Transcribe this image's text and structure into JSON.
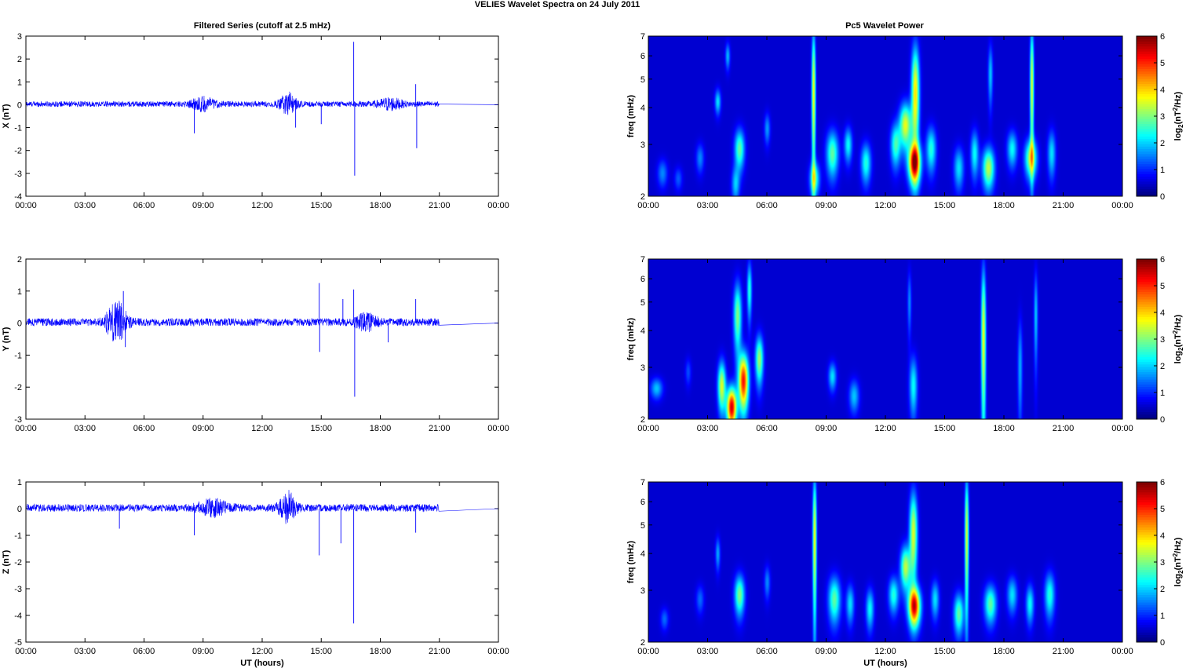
{
  "figure": {
    "title": "VELIES Wavelet Spectra on 24 July      2011",
    "left_title": "Filtered Series (cutoff at 2.5 mHz)",
    "right_title": "Pc5 Wavelet Power",
    "xlabel": "UT (hours)"
  },
  "colors": {
    "trace": "#0000ff",
    "axes": "#000000",
    "jet_background": "#00008f"
  },
  "chart_data": [
    {
      "type": "line",
      "title": "Filtered Series (cutoff at 2.5 mHz)",
      "ylabel": "X (nT)",
      "xlabel": "",
      "xlim": [
        0,
        24
      ],
      "ylim": [
        -4,
        3
      ],
      "xticks": [
        "00:00",
        "03:00",
        "06:00",
        "09:00",
        "12:00",
        "15:00",
        "18:00",
        "21:00",
        "00:00"
      ],
      "yticks": [
        -4,
        -3,
        -2,
        -1,
        0,
        1,
        2,
        3
      ],
      "data_end_hour": 21,
      "baseline_amplitude": 0.12,
      "bursts": [
        {
          "center": 9.0,
          "width": 1.2,
          "amplitude": 0.25
        },
        {
          "center": 13.3,
          "width": 0.8,
          "amplitude": 0.45
        },
        {
          "center": 18.5,
          "width": 1.2,
          "amplitude": 0.22
        }
      ],
      "spikes": [
        {
          "x": 8.55,
          "y": -1.25
        },
        {
          "x": 13.7,
          "y": -1.0
        },
        {
          "x": 15.0,
          "y": -0.85
        },
        {
          "x": 16.65,
          "y": 2.75
        },
        {
          "x": 16.7,
          "y": -3.1
        },
        {
          "x": 19.8,
          "y": 0.9
        },
        {
          "x": 19.85,
          "y": -1.9
        }
      ]
    },
    {
      "type": "line",
      "title": "",
      "ylabel": "Y (nT)",
      "xlabel": "",
      "xlim": [
        0,
        24
      ],
      "ylim": [
        -3,
        2
      ],
      "xticks": [
        "00:00",
        "03:00",
        "06:00",
        "09:00",
        "12:00",
        "15:00",
        "18:00",
        "21:00",
        "00:00"
      ],
      "yticks": [
        -3,
        -2,
        -1,
        0,
        1,
        2
      ],
      "data_end_hour": 21,
      "baseline_amplitude": 0.12,
      "bursts": [
        {
          "center": 4.6,
          "width": 1.0,
          "amplitude": 0.6
        },
        {
          "center": 17.3,
          "width": 1.0,
          "amplitude": 0.22
        }
      ],
      "spikes": [
        {
          "x": 4.95,
          "y": 1.0
        },
        {
          "x": 5.05,
          "y": -0.75
        },
        {
          "x": 14.9,
          "y": 1.25
        },
        {
          "x": 14.92,
          "y": -0.9
        },
        {
          "x": 16.1,
          "y": 0.75
        },
        {
          "x": 16.65,
          "y": 1.05
        },
        {
          "x": 16.7,
          "y": -2.3
        },
        {
          "x": 18.4,
          "y": -0.6
        },
        {
          "x": 19.8,
          "y": 0.75
        }
      ]
    },
    {
      "type": "line",
      "title": "",
      "ylabel": "Z (nT)",
      "xlabel": "UT (hours)",
      "xlim": [
        0,
        24
      ],
      "ylim": [
        -5,
        1
      ],
      "xticks": [
        "00:00",
        "03:00",
        "06:00",
        "09:00",
        "12:00",
        "15:00",
        "18:00",
        "21:00",
        "00:00"
      ],
      "yticks": [
        -5,
        -4,
        -3,
        -2,
        -1,
        0,
        1
      ],
      "data_end_hour": 21,
      "baseline_amplitude": 0.14,
      "bursts": [
        {
          "center": 9.5,
          "width": 1.5,
          "amplitude": 0.25
        },
        {
          "center": 13.3,
          "width": 0.8,
          "amplitude": 0.55
        }
      ],
      "spikes": [
        {
          "x": 4.75,
          "y": -0.75
        },
        {
          "x": 8.55,
          "y": -1.0
        },
        {
          "x": 14.9,
          "y": -1.75
        },
        {
          "x": 16.0,
          "y": -1.3
        },
        {
          "x": 16.65,
          "y": -4.3
        },
        {
          "x": 19.8,
          "y": -0.9
        }
      ]
    },
    {
      "type": "heatmap",
      "title": "Pc5 Wavelet Power",
      "ylabel": "freq (mHz)",
      "xlabel": "",
      "xlim": [
        0,
        24
      ],
      "ylim": [
        2,
        7
      ],
      "yscale": "log",
      "yticks": [
        2,
        3,
        4,
        5,
        6,
        7
      ],
      "xticks": [
        "00:00",
        "03:00",
        "06:00",
        "09:00",
        "12:00",
        "15:00",
        "18:00",
        "21:00",
        "00:00"
      ],
      "colorbar": {
        "label": "log2(nT^2/Hz)",
        "range": [
          0,
          6
        ],
        "ticks": [
          0,
          1,
          2,
          3,
          4,
          5,
          6
        ],
        "colormap": "jet"
      },
      "features": [
        {
          "t": 0.7,
          "f": 2.4,
          "power": 1.2,
          "dt": 0.25,
          "df": 0.25
        },
        {
          "t": 1.5,
          "f": 2.3,
          "power": 0.9,
          "dt": 0.2,
          "df": 0.2
        },
        {
          "t": 2.6,
          "f": 2.7,
          "power": 1.2,
          "dt": 0.2,
          "df": 0.3
        },
        {
          "t": 3.5,
          "f": 4.2,
          "power": 1.8,
          "dt": 0.15,
          "df": 0.4
        },
        {
          "t": 4.0,
          "f": 6.0,
          "power": 1.5,
          "dt": 0.12,
          "df": 0.6
        },
        {
          "t": 4.6,
          "f": 2.9,
          "power": 2.6,
          "dt": 0.25,
          "df": 0.45
        },
        {
          "t": 4.4,
          "f": 2.2,
          "power": 1.6,
          "dt": 0.2,
          "df": 0.3
        },
        {
          "t": 6.0,
          "f": 3.4,
          "power": 1.3,
          "dt": 0.15,
          "df": 0.4
        },
        {
          "t": 8.35,
          "f": 4.5,
          "power": 3.6,
          "dt": 0.1,
          "df": 2.5
        },
        {
          "t": 8.4,
          "f": 2.3,
          "power": 2.4,
          "dt": 0.25,
          "df": 0.3
        },
        {
          "t": 9.3,
          "f": 2.8,
          "power": 2.6,
          "dt": 0.3,
          "df": 0.5
        },
        {
          "t": 10.1,
          "f": 3.0,
          "power": 2.0,
          "dt": 0.2,
          "df": 0.4
        },
        {
          "t": 11.0,
          "f": 2.6,
          "power": 2.2,
          "dt": 0.25,
          "df": 0.4
        },
        {
          "t": 12.5,
          "f": 3.0,
          "power": 2.4,
          "dt": 0.25,
          "df": 0.5
        },
        {
          "t": 13.0,
          "f": 3.5,
          "power": 3.5,
          "dt": 0.3,
          "df": 0.6
        },
        {
          "t": 13.45,
          "f": 2.6,
          "power": 5.4,
          "dt": 0.3,
          "df": 0.4
        },
        {
          "t": 13.5,
          "f": 4.5,
          "power": 3.8,
          "dt": 0.2,
          "df": 1.8
        },
        {
          "t": 14.3,
          "f": 2.9,
          "power": 2.2,
          "dt": 0.25,
          "df": 0.5
        },
        {
          "t": 15.7,
          "f": 2.5,
          "power": 1.8,
          "dt": 0.25,
          "df": 0.4
        },
        {
          "t": 16.5,
          "f": 2.8,
          "power": 2.0,
          "dt": 0.2,
          "df": 0.5
        },
        {
          "t": 17.2,
          "f": 2.5,
          "power": 3.2,
          "dt": 0.3,
          "df": 0.4
        },
        {
          "t": 17.3,
          "f": 5.2,
          "power": 1.6,
          "dt": 0.12,
          "df": 1.2
        },
        {
          "t": 18.4,
          "f": 2.9,
          "power": 2.0,
          "dt": 0.25,
          "df": 0.4
        },
        {
          "t": 19.4,
          "f": 4.8,
          "power": 3.4,
          "dt": 0.1,
          "df": 2.4
        },
        {
          "t": 19.35,
          "f": 2.7,
          "power": 3.2,
          "dt": 0.3,
          "df": 0.4
        },
        {
          "t": 20.4,
          "f": 2.8,
          "power": 1.8,
          "dt": 0.2,
          "df": 0.5
        }
      ]
    },
    {
      "type": "heatmap",
      "title": "",
      "ylabel": "freq (mHz)",
      "xlabel": "",
      "xlim": [
        0,
        24
      ],
      "ylim": [
        2,
        7
      ],
      "yscale": "log",
      "yticks": [
        2,
        3,
        4,
        5,
        6,
        7
      ],
      "xticks": [
        "00:00",
        "03:00",
        "06:00",
        "09:00",
        "12:00",
        "15:00",
        "18:00",
        "21:00",
        "00:00"
      ],
      "colorbar": {
        "label": "log2(nT^2/Hz)",
        "range": [
          0,
          6
        ],
        "ticks": [
          0,
          1,
          2,
          3,
          4,
          5,
          6
        ],
        "colormap": "jet"
      },
      "features": [
        {
          "t": 0.4,
          "f": 2.55,
          "power": 1.6,
          "dt": 0.3,
          "df": 0.2
        },
        {
          "t": 2.0,
          "f": 2.9,
          "power": 0.8,
          "dt": 0.15,
          "df": 0.3
        },
        {
          "t": 3.7,
          "f": 2.6,
          "power": 3.4,
          "dt": 0.2,
          "df": 0.5
        },
        {
          "t": 4.2,
          "f": 2.2,
          "power": 5.6,
          "dt": 0.25,
          "df": 0.35
        },
        {
          "t": 4.8,
          "f": 2.7,
          "power": 5.2,
          "dt": 0.25,
          "df": 0.6
        },
        {
          "t": 4.5,
          "f": 4.5,
          "power": 2.8,
          "dt": 0.2,
          "df": 1.2
        },
        {
          "t": 5.1,
          "f": 5.5,
          "power": 2.2,
          "dt": 0.12,
          "df": 1.2
        },
        {
          "t": 5.6,
          "f": 3.2,
          "power": 3.0,
          "dt": 0.2,
          "df": 0.6
        },
        {
          "t": 9.3,
          "f": 2.8,
          "power": 1.8,
          "dt": 0.2,
          "df": 0.3
        },
        {
          "t": 10.4,
          "f": 2.4,
          "power": 1.6,
          "dt": 0.25,
          "df": 0.3
        },
        {
          "t": 13.4,
          "f": 2.6,
          "power": 2.0,
          "dt": 0.2,
          "df": 0.6
        },
        {
          "t": 13.2,
          "f": 5.0,
          "power": 1.2,
          "dt": 0.1,
          "df": 1.2
        },
        {
          "t": 16.95,
          "f": 3.8,
          "power": 3.5,
          "dt": 0.12,
          "df": 2.4
        },
        {
          "t": 18.8,
          "f": 3.0,
          "power": 1.4,
          "dt": 0.12,
          "df": 1.2
        },
        {
          "t": 19.6,
          "f": 4.5,
          "power": 1.6,
          "dt": 0.1,
          "df": 1.6
        }
      ]
    },
    {
      "type": "heatmap",
      "title": "",
      "ylabel": "freq (mHz)",
      "xlabel": "UT (hours)",
      "xlim": [
        0,
        24
      ],
      "ylim": [
        2,
        7
      ],
      "yscale": "log",
      "yticks": [
        2,
        3,
        4,
        5,
        6,
        7
      ],
      "xticks": [
        "00:00",
        "03:00",
        "06:00",
        "09:00",
        "12:00",
        "15:00",
        "18:00",
        "21:00",
        "00:00"
      ],
      "colorbar": {
        "label": "log2(nT^2/Hz)",
        "range": [
          0,
          6
        ],
        "ticks": [
          0,
          1,
          2,
          3,
          4,
          5,
          6
        ],
        "colormap": "jet"
      },
      "features": [
        {
          "t": 0.8,
          "f": 2.4,
          "power": 1.0,
          "dt": 0.2,
          "df": 0.2
        },
        {
          "t": 2.6,
          "f": 2.8,
          "power": 1.0,
          "dt": 0.2,
          "df": 0.3
        },
        {
          "t": 3.5,
          "f": 4.0,
          "power": 1.4,
          "dt": 0.12,
          "df": 0.5
        },
        {
          "t": 4.6,
          "f": 2.9,
          "power": 2.8,
          "dt": 0.25,
          "df": 0.45
        },
        {
          "t": 6.0,
          "f": 3.2,
          "power": 1.2,
          "dt": 0.15,
          "df": 0.4
        },
        {
          "t": 8.4,
          "f": 4.5,
          "power": 3.6,
          "dt": 0.1,
          "df": 2.5
        },
        {
          "t": 9.4,
          "f": 2.8,
          "power": 2.6,
          "dt": 0.3,
          "df": 0.5
        },
        {
          "t": 10.2,
          "f": 2.7,
          "power": 1.8,
          "dt": 0.2,
          "df": 0.4
        },
        {
          "t": 11.2,
          "f": 2.6,
          "power": 2.0,
          "dt": 0.2,
          "df": 0.4
        },
        {
          "t": 12.4,
          "f": 2.9,
          "power": 2.2,
          "dt": 0.25,
          "df": 0.4
        },
        {
          "t": 13.0,
          "f": 3.6,
          "power": 3.2,
          "dt": 0.25,
          "df": 0.6
        },
        {
          "t": 13.45,
          "f": 2.65,
          "power": 5.2,
          "dt": 0.3,
          "df": 0.4
        },
        {
          "t": 13.4,
          "f": 4.7,
          "power": 3.4,
          "dt": 0.2,
          "df": 1.6
        },
        {
          "t": 14.5,
          "f": 2.8,
          "power": 1.8,
          "dt": 0.2,
          "df": 0.4
        },
        {
          "t": 15.7,
          "f": 2.5,
          "power": 2.6,
          "dt": 0.25,
          "df": 0.4
        },
        {
          "t": 16.1,
          "f": 4.6,
          "power": 3.4,
          "dt": 0.1,
          "df": 2.4
        },
        {
          "t": 17.3,
          "f": 2.7,
          "power": 2.6,
          "dt": 0.3,
          "df": 0.4
        },
        {
          "t": 18.4,
          "f": 2.9,
          "power": 1.8,
          "dt": 0.25,
          "df": 0.4
        },
        {
          "t": 19.3,
          "f": 2.7,
          "power": 2.0,
          "dt": 0.2,
          "df": 0.4
        },
        {
          "t": 20.3,
          "f": 2.9,
          "power": 2.2,
          "dt": 0.25,
          "df": 0.5
        }
      ]
    }
  ]
}
